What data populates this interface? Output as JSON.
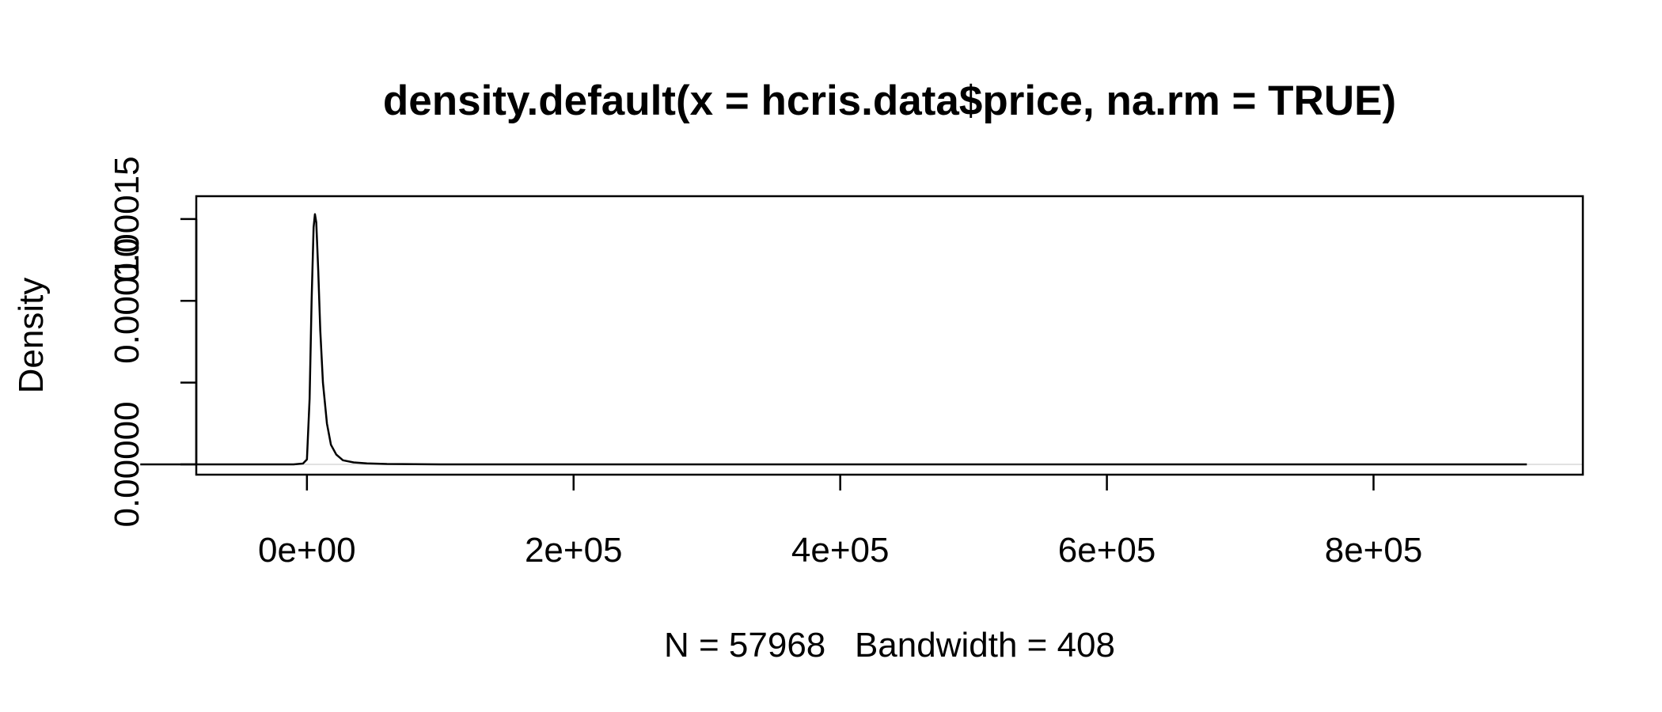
{
  "chart_data": {
    "type": "line",
    "title": "density.default(x = hcris.data$price, na.rm = TRUE)",
    "xlabel": "N = 57968   Bandwidth = 408",
    "ylabel": "Density",
    "xlim": [
      -83000,
      957000
    ],
    "ylim": [
      -6.3e-06,
      0.000164
    ],
    "x_ticks": [
      {
        "value": 0,
        "label": "0e+00"
      },
      {
        "value": 200000,
        "label": "2e+05"
      },
      {
        "value": 400000,
        "label": "4e+05"
      },
      {
        "value": 600000,
        "label": "6e+05"
      },
      {
        "value": 800000,
        "label": "8e+05"
      }
    ],
    "y_ticks": [
      {
        "value": 0.0,
        "label": "0.00000"
      },
      {
        "value": 5e-05,
        "label": ""
      },
      {
        "value": 0.0001,
        "label": "0.00010"
      },
      {
        "value": 0.00015,
        "label": "0.00015"
      }
    ],
    "grid": false,
    "zero_reference_line": true,
    "series": [
      {
        "color": "#000000",
        "x": [
          -125000,
          -10000,
          -3000,
          0,
          2000,
          3500,
          5000,
          6000,
          7000,
          8500,
          10000,
          12000,
          15000,
          18000,
          22000,
          27000,
          35000,
          45000,
          60000,
          100000,
          915000
        ],
        "y": [
          0,
          0,
          5e-07,
          3e-06,
          4e-05,
          0.0001,
          0.000145,
          0.000153,
          0.000148,
          0.000118,
          8.2e-05,
          5e-05,
          2.5e-05,
          1.2e-05,
          6e-06,
          2.5e-06,
          1.2e-06,
          6e-07,
          2e-07,
          2e-08,
          0
        ]
      }
    ]
  }
}
